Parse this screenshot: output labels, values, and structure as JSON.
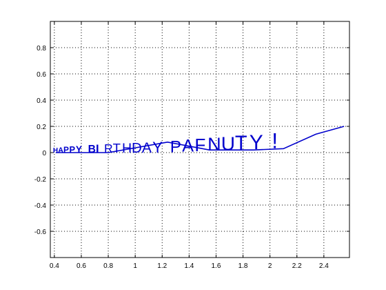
{
  "chart_data": {
    "type": "line",
    "title": "",
    "xlabel": "",
    "ylabel": "",
    "xlim": [
      0.37,
      2.59
    ],
    "ylim": [
      -0.8,
      1.0
    ],
    "x_ticks": [
      0.4,
      0.6,
      0.8,
      1,
      1.2,
      1.4,
      1.6,
      1.8,
      2,
      2.2,
      2.4
    ],
    "x_tick_labels": [
      "0.4",
      "0.6",
      "0.8",
      "1",
      "1.2",
      "1.4",
      "1.6",
      "1.8",
      "2",
      "2.2",
      "2.4"
    ],
    "y_ticks": [
      0.8,
      0.6,
      0.4,
      0.2,
      0,
      -0.2,
      -0.4,
      -0.6
    ],
    "y_tick_labels": [
      "0.8",
      "0.6",
      "0.4",
      "0.2",
      "0",
      "-0.2",
      "-0.4",
      "-0.6"
    ],
    "grid": true,
    "grid_style": "dotted",
    "text_annotation": "HAPPY BIRTHDAY PAFNUTY !",
    "series": [
      {
        "color": "#0000cc",
        "points": [
          [
            0.41,
            0.0
          ],
          [
            0.8,
            0.0
          ],
          [
            1.24,
            0.08
          ],
          [
            1.55,
            0.02
          ],
          [
            1.88,
            0.02
          ],
          [
            2.1,
            0.03
          ],
          [
            2.34,
            0.14
          ],
          [
            2.55,
            0.2
          ]
        ]
      }
    ]
  },
  "colors": {
    "line": "#0000cc",
    "axis": "#000000",
    "grid": "#000000",
    "background": "#ffffff"
  }
}
